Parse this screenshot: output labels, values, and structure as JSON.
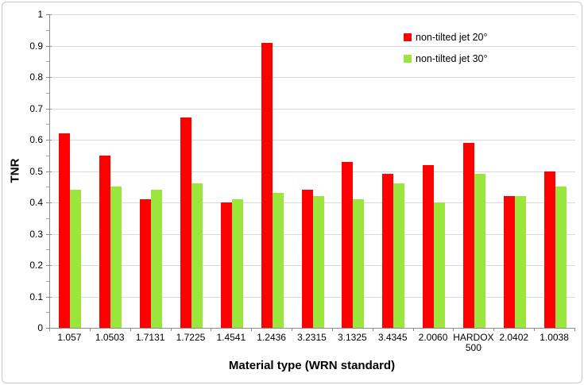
{
  "figure": {
    "background": "#FFFFFF",
    "border_color": "#C8C8C8"
  },
  "chart_data": {
    "type": "bar",
    "title": "",
    "xlabel": "Material type (WRN standard)",
    "ylabel": "TNR",
    "ylim": [
      0,
      1
    ],
    "yticks": [
      "0",
      "0.1",
      "0.2",
      "0.3",
      "0.4",
      "0.5",
      "0.6",
      "0.7",
      "0.8",
      "0.9",
      "1"
    ],
    "grid": "horizontal-major",
    "gridline_color": "#D9D9D9",
    "axis_color": "#8C8C8C",
    "legend_position": "inside-top-right",
    "categories": [
      "1.057",
      "1.0503",
      "1.7131",
      "1.7225",
      "1.4541",
      "1.2436",
      "3.2315",
      "3.1325",
      "3.4345",
      "2.0060",
      "HARDOX 500",
      "2.0402",
      "1.0038"
    ],
    "series": [
      {
        "name": "non-tilted jet 20°",
        "color": "#FF0000",
        "values": [
          0.62,
          0.55,
          0.41,
          0.67,
          0.4,
          0.91,
          0.44,
          0.53,
          0.49,
          0.52,
          0.59,
          0.42,
          0.5
        ]
      },
      {
        "name": "non-tilted jet 30°",
        "color": "#9AE63C",
        "values": [
          0.44,
          0.45,
          0.44,
          0.46,
          0.41,
          0.43,
          0.42,
          0.41,
          0.46,
          0.4,
          0.49,
          0.42,
          0.45
        ]
      }
    ]
  }
}
